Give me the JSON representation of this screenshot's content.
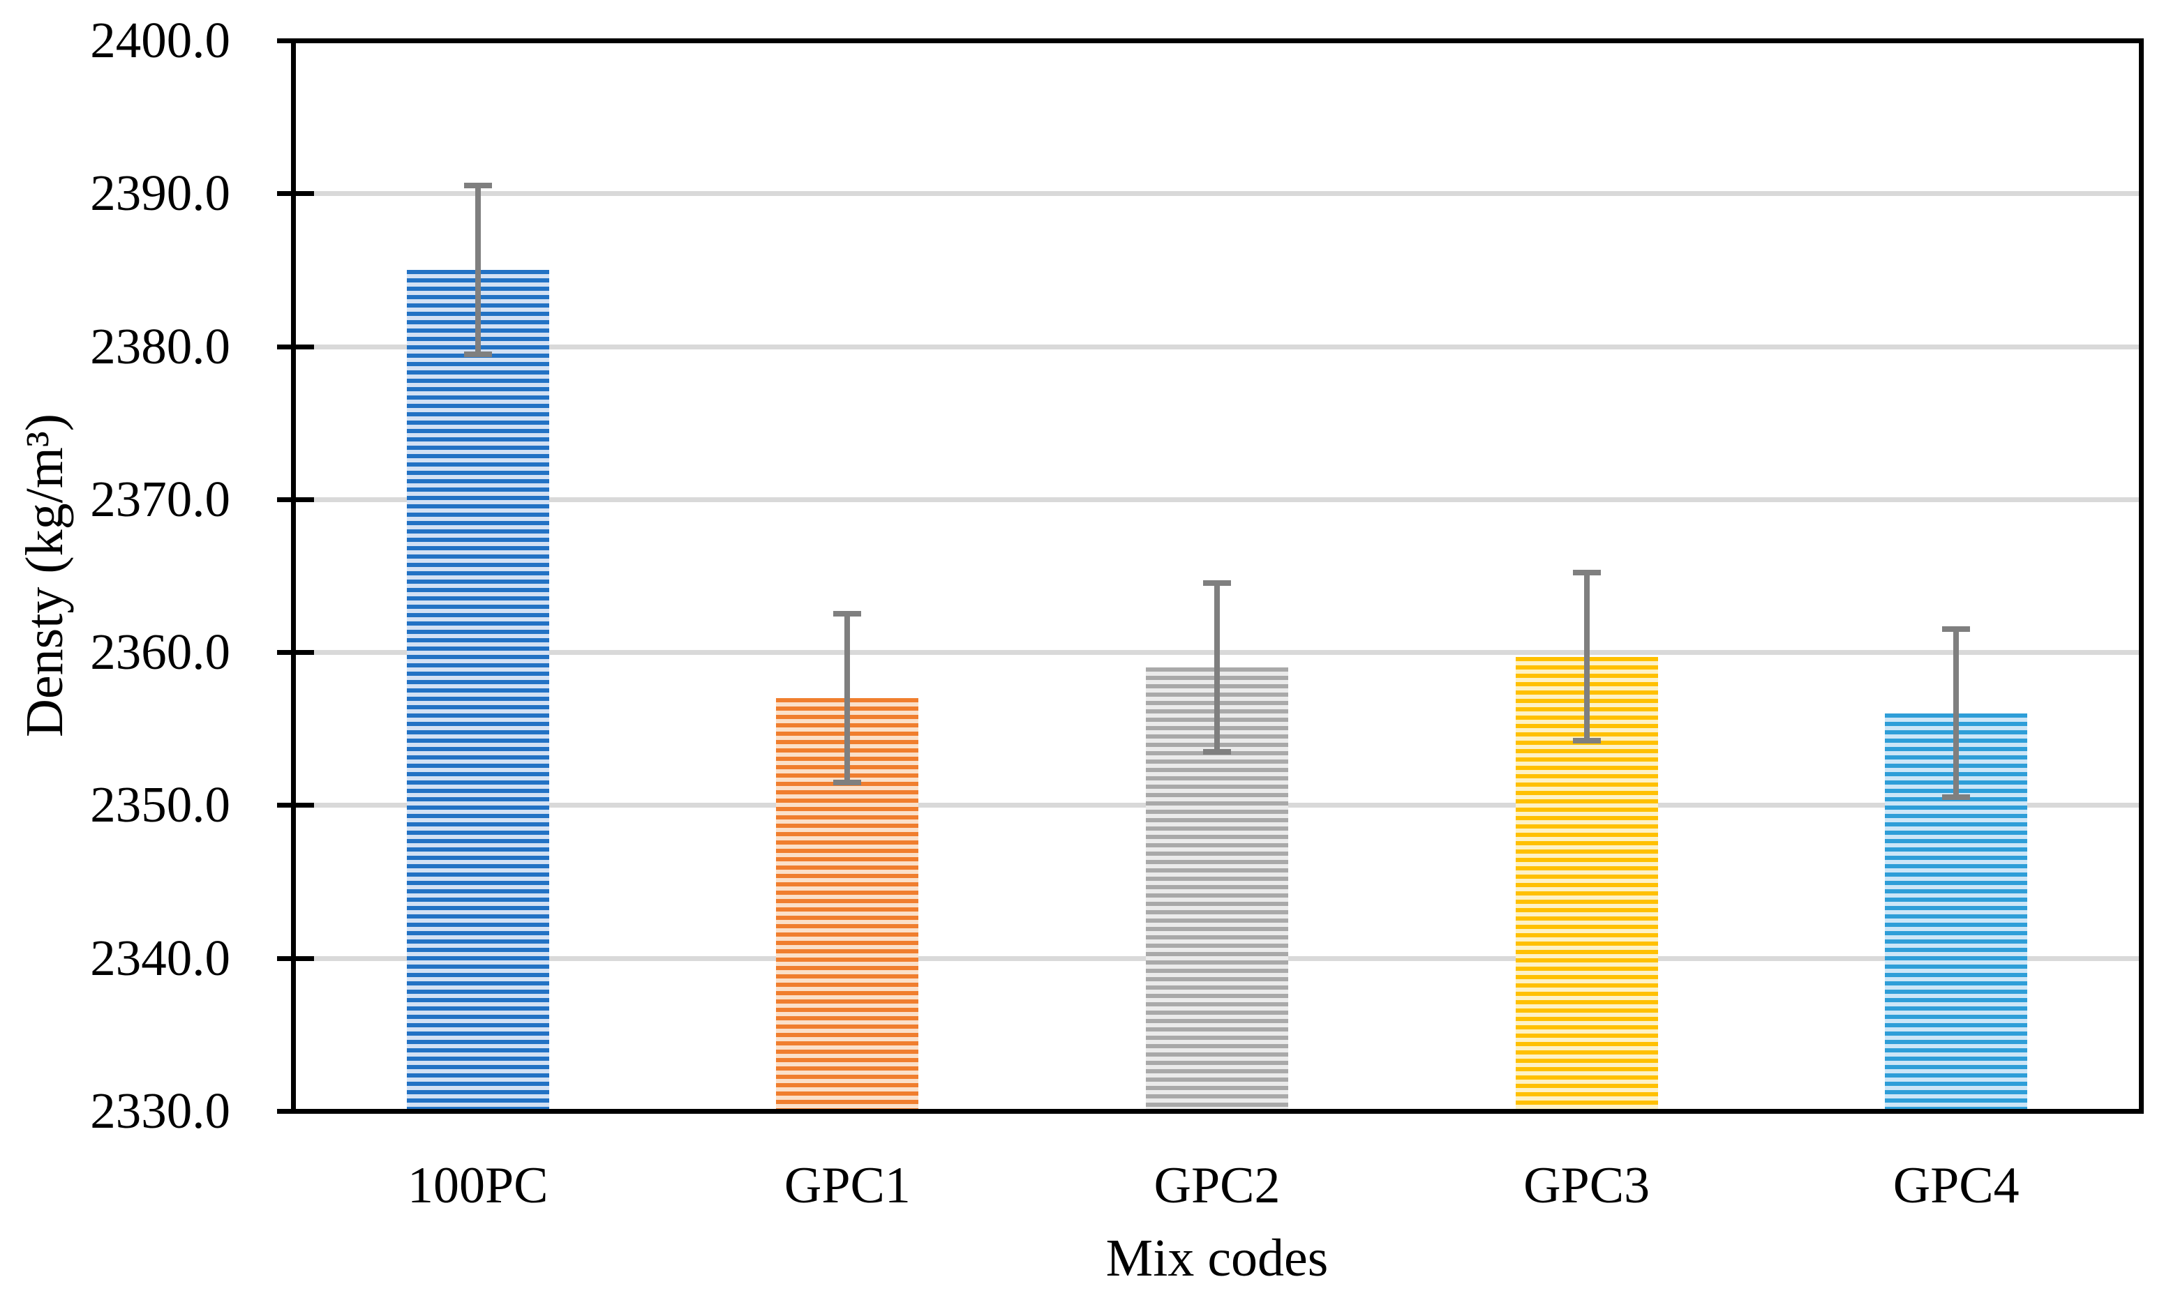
{
  "chart_data": {
    "type": "bar",
    "title": "",
    "xlabel": "Mix codes",
    "ylabel": "Densty (kg/m³)",
    "categories": [
      "100PC",
      "GPC1",
      "GPC2",
      "GPC3",
      "GPC4"
    ],
    "values": [
      2385.0,
      2357.0,
      2359.0,
      2359.7,
      2356.0
    ],
    "error_bars": [
      5.5,
      5.5,
      5.5,
      5.5,
      5.5
    ],
    "ylim": [
      2330.0,
      2400.0
    ],
    "ytick_step": 10,
    "ytick_labels": [
      "2400.0",
      "2390.0",
      "2380.0",
      "2370.0",
      "2360.0",
      "2350.0",
      "2340.0",
      "2330.0"
    ],
    "grid": true,
    "legend": "none",
    "bar_pattern": "horizontal-stripes",
    "bar_colors": [
      {
        "stripe": "#2272C4",
        "background": "#D3E1F4"
      },
      {
        "stripe": "#F07E2E",
        "background": "#FBE0C9"
      },
      {
        "stripe": "#A9A9A9",
        "background": "#EBEBEB"
      },
      {
        "stripe": "#FFC001",
        "background": "#FDF2C7"
      },
      {
        "stripe": "#2E9ED8",
        "background": "#CDE6F7"
      }
    ],
    "error_bar_color": "#7F7F7F",
    "gridline_color": "#D9D9D9",
    "axis_color": "#000000",
    "text_color": "#000000"
  }
}
